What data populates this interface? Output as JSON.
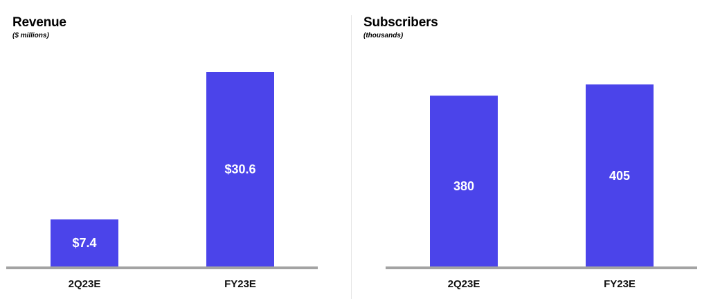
{
  "colors": {
    "bar": "#4b44ea",
    "baseline": "#a3a3a3",
    "bar_label": "#ffffff",
    "tick_label": "#111111"
  },
  "chart_data": [
    {
      "type": "bar",
      "title": "Revenue",
      "subtitle": "($ millions)",
      "categories": [
        "2Q23E",
        "FY23E"
      ],
      "values": [
        7.4,
        30.6
      ],
      "data_labels": [
        "$7.4",
        "$30.6"
      ],
      "ylim": [
        0,
        30.6
      ],
      "grid": false,
      "legend": "none"
    },
    {
      "type": "bar",
      "title": "Subscribers",
      "subtitle": "(thousands)",
      "categories": [
        "2Q23E",
        "FY23E"
      ],
      "values": [
        380,
        405
      ],
      "data_labels": [
        "380",
        "405"
      ],
      "ylim": [
        0,
        405
      ],
      "grid": false,
      "legend": "none"
    }
  ]
}
